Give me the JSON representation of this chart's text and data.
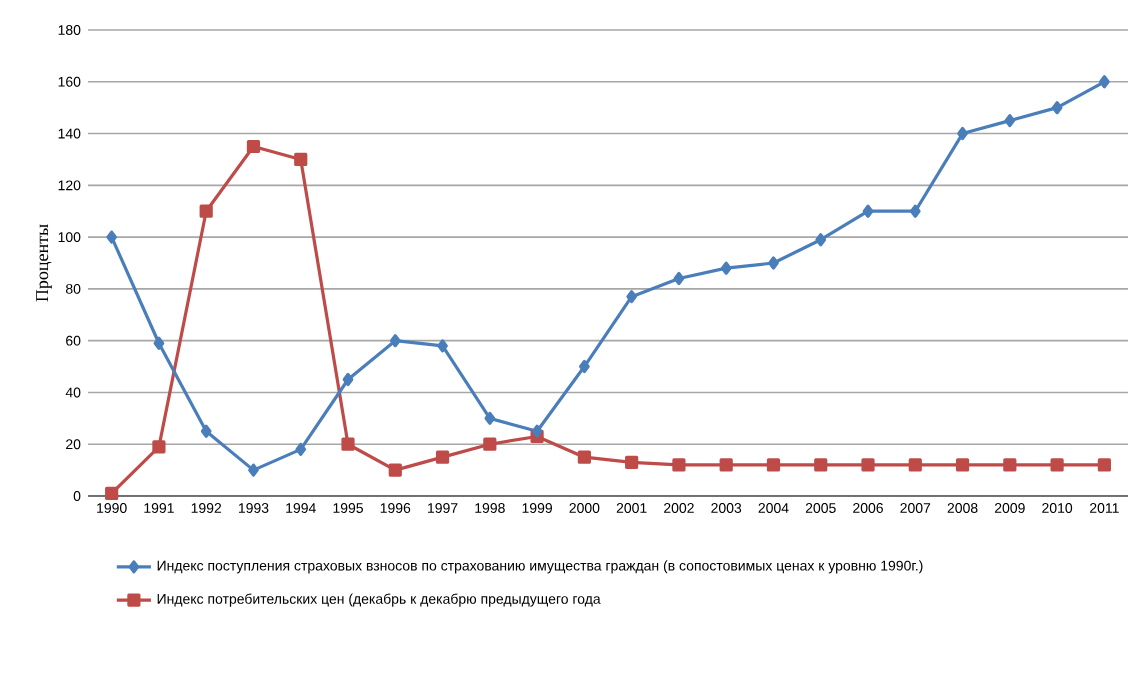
{
  "chart_data": {
    "type": "line",
    "ylabel": "Проценты",
    "categories": [
      "1990",
      "1991",
      "1992",
      "1993",
      "1994",
      "1995",
      "1996",
      "1997",
      "1998",
      "1999",
      "2000",
      "2001",
      "2002",
      "2003",
      "2004",
      "2005",
      "2006",
      "2007",
      "2008",
      "2009",
      "2010",
      "2011"
    ],
    "series": [
      {
        "name": "Индекс поступления страховых взносов по страхованию имущества граждан (в сопостовимых ценах к уровню 1990г.)",
        "color": "#4a7ebb",
        "marker": "diamond",
        "values": [
          100,
          59,
          25,
          10,
          18,
          45,
          60,
          58,
          30,
          25,
          50,
          77,
          84,
          88,
          90,
          99,
          110,
          110,
          140,
          145,
          150,
          160
        ]
      },
      {
        "name": "Индекс потребительских цен (декабрь к декабрю предыдущего года",
        "color": "#be4b48",
        "marker": "square",
        "values": [
          1,
          19,
          110,
          135,
          130,
          20,
          10,
          15,
          20,
          23,
          15,
          13,
          12,
          12,
          12,
          12,
          12,
          12,
          12,
          12,
          12,
          12
        ]
      }
    ],
    "ylim": [
      0,
      180
    ],
    "yticks": [
      0,
      20,
      40,
      60,
      80,
      100,
      120,
      140,
      160,
      180
    ],
    "grid": "y",
    "legend": "bottom",
    "line_style": "solid"
  }
}
